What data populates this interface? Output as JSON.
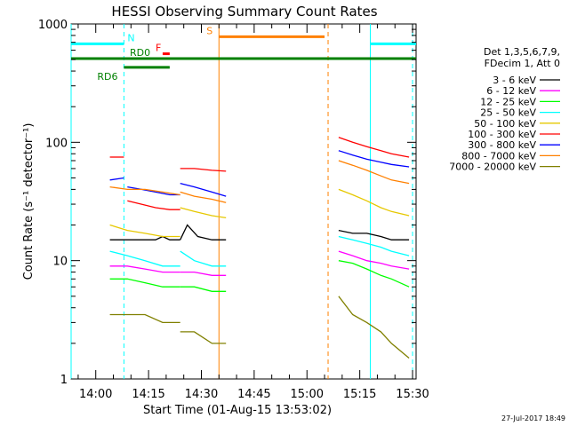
{
  "chart_data": {
    "type": "line",
    "title": "HESSI Observing Summary Count Rates",
    "xlabel": "Start Time (01-Aug-15 13:53:02)",
    "ylabel": "Count Rate (s⁻¹ detector⁻¹)",
    "yscale": "log",
    "ylim": [
      1,
      1000
    ],
    "xlim_min_after_start": [
      0,
      98
    ],
    "x_ticks": [
      "14:00",
      "14:15",
      "14:30",
      "14:45",
      "15:00",
      "15:15",
      "15:30"
    ],
    "y_ticks": [
      "1",
      "10",
      "100",
      "1000"
    ],
    "legend_title": [
      "Det 1,3,5,6,7,9,",
      "FDecim 1, Att 0"
    ],
    "legend_position": "right",
    "timestamp": "27-Jul-2017 18:49",
    "series": [
      {
        "name": "3 - 6 keV",
        "color": "#000000",
        "segments": [
          [
            [
              11,
              15
            ],
            [
              15,
              15
            ],
            [
              16,
              15
            ],
            [
              18,
              15
            ],
            [
              20,
              15
            ],
            [
              22,
              15
            ],
            [
              24,
              15
            ],
            [
              26,
              16
            ],
            [
              28,
              15
            ],
            [
              30,
              15
            ],
            [
              31,
              15
            ]
          ],
          [
            [
              31,
              15
            ],
            [
              33,
              20
            ],
            [
              36,
              16
            ],
            [
              40,
              15
            ],
            [
              44,
              15
            ]
          ],
          [
            [
              76,
              18
            ],
            [
              80,
              17
            ],
            [
              84,
              17
            ],
            [
              88,
              16
            ],
            [
              91,
              15
            ],
            [
              96,
              15
            ]
          ]
        ]
      },
      {
        "name": "6 - 12 keV",
        "color": "#ff00ff",
        "segments": [
          [
            [
              11,
              9
            ],
            [
              16,
              9
            ],
            [
              21,
              8.5
            ],
            [
              26,
              8
            ],
            [
              31,
              8
            ]
          ],
          [
            [
              31,
              8
            ],
            [
              35,
              8
            ],
            [
              40,
              7.5
            ],
            [
              44,
              7.5
            ]
          ],
          [
            [
              76,
              12
            ],
            [
              80,
              11
            ],
            [
              84,
              10
            ],
            [
              88,
              9.5
            ],
            [
              91,
              9
            ],
            [
              96,
              8.5
            ]
          ]
        ]
      },
      {
        "name": "12 - 25 keV",
        "color": "#00ff00",
        "segments": [
          [
            [
              11,
              7
            ],
            [
              16,
              7
            ],
            [
              21,
              6.5
            ],
            [
              26,
              6
            ],
            [
              31,
              6
            ]
          ],
          [
            [
              31,
              6
            ],
            [
              35,
              6
            ],
            [
              40,
              5.5
            ],
            [
              44,
              5.5
            ]
          ],
          [
            [
              76,
              10
            ],
            [
              80,
              9.5
            ],
            [
              84,
              8.5
            ],
            [
              88,
              7.5
            ],
            [
              91,
              7
            ],
            [
              96,
              6
            ]
          ]
        ]
      },
      {
        "name": "25 - 50 keV",
        "color": "#00ffff",
        "segments": [
          [
            [
              11,
              12
            ],
            [
              16,
              11
            ],
            [
              21,
              10
            ],
            [
              26,
              9
            ],
            [
              31,
              9
            ]
          ],
          [
            [
              31,
              12
            ],
            [
              35,
              10
            ],
            [
              40,
              9
            ],
            [
              44,
              9
            ]
          ],
          [
            [
              76,
              16
            ],
            [
              80,
              15
            ],
            [
              84,
              14
            ],
            [
              88,
              13
            ],
            [
              91,
              12
            ],
            [
              96,
              11
            ]
          ]
        ]
      },
      {
        "name": "50 - 100 keV",
        "color": "#e6c800",
        "segments": [
          [
            [
              11,
              20
            ],
            [
              16,
              18
            ],
            [
              21,
              17
            ],
            [
              26,
              16
            ],
            [
              31,
              16
            ]
          ],
          [
            [
              31,
              28
            ],
            [
              35,
              26
            ],
            [
              40,
              24
            ],
            [
              44,
              23
            ]
          ],
          [
            [
              76,
              40
            ],
            [
              80,
              36
            ],
            [
              84,
              32
            ],
            [
              88,
              28
            ],
            [
              91,
              26
            ],
            [
              96,
              24
            ]
          ]
        ]
      },
      {
        "name": "100 - 300 keV",
        "color": "#ff0000",
        "segments": [
          [
            [
              11,
              75
            ],
            [
              15,
              75
            ]
          ],
          [
            [
              16,
              32
            ],
            [
              20,
              30
            ],
            [
              24,
              28
            ],
            [
              28,
              27
            ],
            [
              31,
              27
            ]
          ],
          [
            [
              31,
              60
            ],
            [
              35,
              60
            ],
            [
              40,
              58
            ],
            [
              44,
              57
            ]
          ],
          [
            [
              76,
              110
            ],
            [
              80,
              100
            ],
            [
              84,
              92
            ],
            [
              88,
              85
            ],
            [
              91,
              80
            ],
            [
              96,
              75
            ]
          ]
        ]
      },
      {
        "name": "300 - 800 keV",
        "color": "#0000ff",
        "segments": [
          [
            [
              11,
              48
            ],
            [
              15,
              50
            ]
          ],
          [
            [
              16,
              42
            ],
            [
              20,
              40
            ],
            [
              24,
              38
            ],
            [
              28,
              36
            ],
            [
              31,
              36
            ]
          ],
          [
            [
              31,
              45
            ],
            [
              35,
              42
            ],
            [
              40,
              38
            ],
            [
              44,
              35
            ]
          ],
          [
            [
              76,
              85
            ],
            [
              80,
              78
            ],
            [
              84,
              72
            ],
            [
              88,
              68
            ],
            [
              91,
              65
            ],
            [
              96,
              62
            ]
          ]
        ]
      },
      {
        "name": "800 - 7000 keV",
        "color": "#ff8000",
        "segments": [
          [
            [
              11,
              42
            ],
            [
              16,
              40
            ],
            [
              21,
              40
            ],
            [
              26,
              38
            ],
            [
              31,
              36
            ]
          ],
          [
            [
              31,
              38
            ],
            [
              35,
              35
            ],
            [
              40,
              33
            ],
            [
              44,
              31
            ]
          ],
          [
            [
              76,
              70
            ],
            [
              80,
              64
            ],
            [
              84,
              58
            ],
            [
              88,
              52
            ],
            [
              91,
              48
            ],
            [
              96,
              45
            ]
          ]
        ]
      },
      {
        "name": "7000 - 20000 keV",
        "color": "#808000",
        "segments": [
          [
            [
              11,
              3.5
            ],
            [
              16,
              3.5
            ],
            [
              21,
              3.5
            ],
            [
              26,
              3
            ],
            [
              31,
              3
            ]
          ],
          [
            [
              31,
              2.5
            ],
            [
              35,
              2.5
            ],
            [
              40,
              2
            ],
            [
              44,
              2
            ]
          ],
          [
            [
              76,
              5
            ],
            [
              80,
              3.5
            ],
            [
              84,
              3
            ],
            [
              88,
              2.5
            ],
            [
              91,
              2
            ],
            [
              96,
              1.5
            ]
          ]
        ]
      }
    ],
    "state_markers": [
      {
        "label": "N",
        "color": "#00ffff",
        "y": 680,
        "x_ranges": [
          [
            0,
            15
          ],
          [
            85,
            98
          ]
        ]
      },
      {
        "label": "F",
        "color": "#ff0000",
        "y": 560,
        "x_ranges": [
          [
            26,
            28
          ]
        ]
      },
      {
        "label": "S",
        "color": "#ff8000",
        "y": 780,
        "x_ranges": [
          [
            42,
            72
          ]
        ]
      },
      {
        "label": "RD0",
        "color": "#008000",
        "y": 510,
        "x_ranges": [
          [
            0,
            98
          ]
        ]
      },
      {
        "label": "RD6",
        "color": "#008000",
        "y": 430,
        "x_ranges": [
          [
            15,
            28
          ]
        ]
      }
    ],
    "vertical_lines": [
      {
        "x": 0,
        "color": "#00ffff",
        "style": "solid"
      },
      {
        "x": 15,
        "color": "#00ffff",
        "style": "dashed"
      },
      {
        "x": 42,
        "color": "#ff8000",
        "style": "solid"
      },
      {
        "x": 73,
        "color": "#ff8000",
        "style": "dashed"
      },
      {
        "x": 85,
        "color": "#00ffff",
        "style": "solid"
      },
      {
        "x": 97,
        "color": "#00ffff",
        "style": "dashed"
      }
    ]
  }
}
